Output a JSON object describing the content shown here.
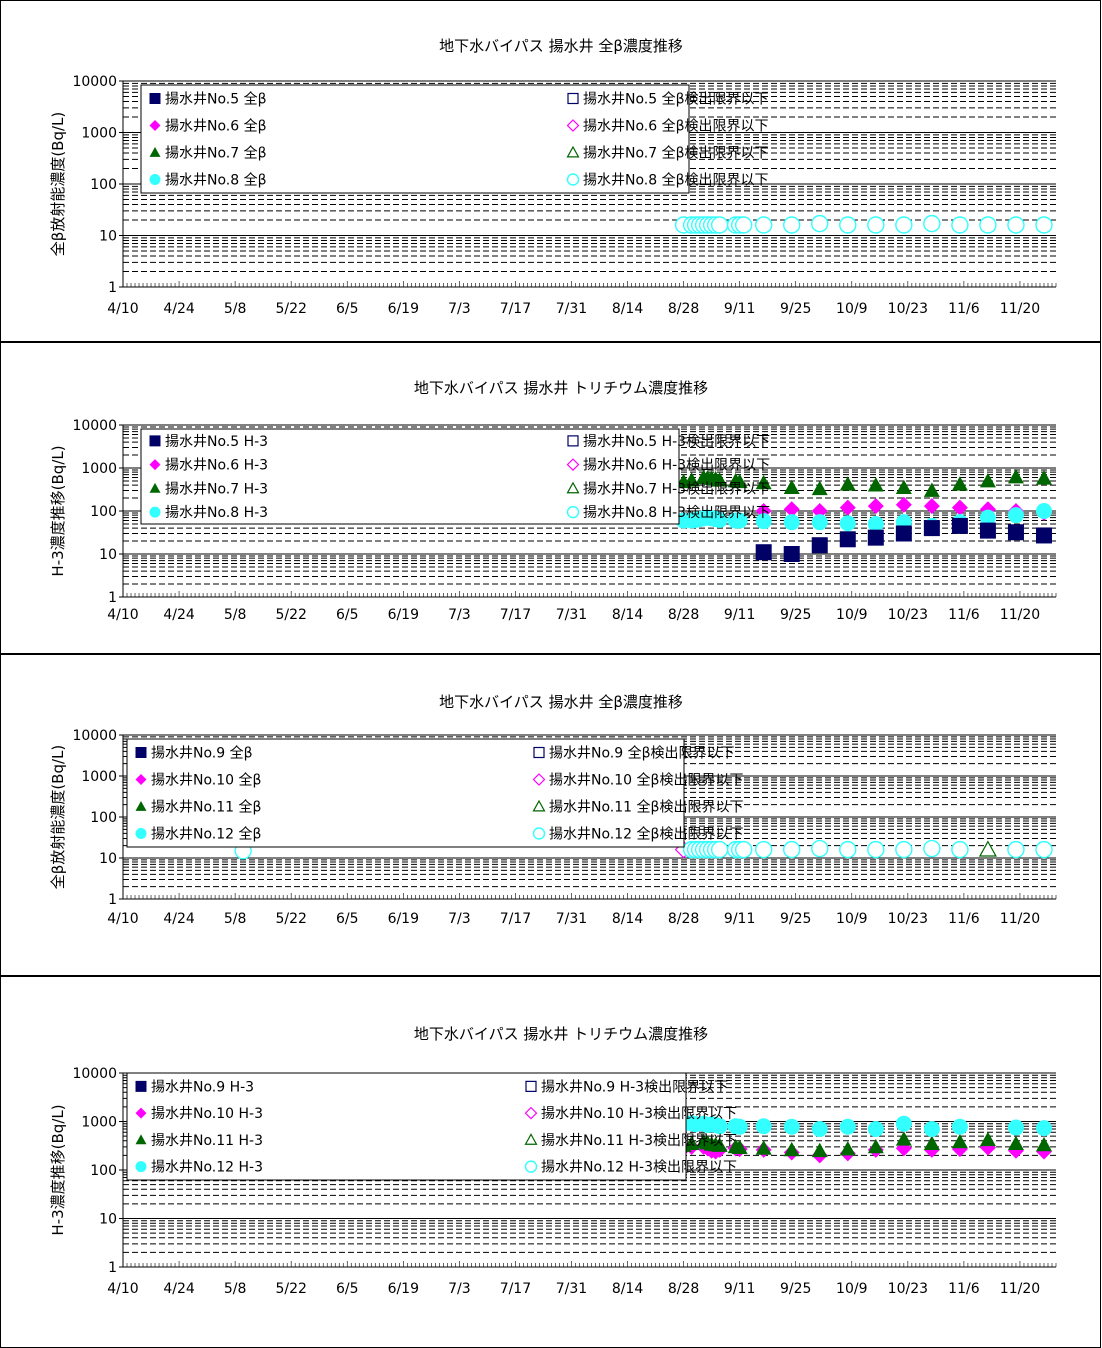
{
  "x_ticks": [
    "4/10",
    "4/24",
    "5/8",
    "5/22",
    "6/5",
    "6/19",
    "7/3",
    "7/17",
    "7/31",
    "8/14",
    "8/28",
    "9/11",
    "9/25",
    "10/9",
    "10/23",
    "11/6",
    "11/20"
  ],
  "colors": {
    "no5": "#000066",
    "no6": "#ff00ff",
    "no7": "#006600",
    "no8": "#33ffff",
    "no9": "#000066",
    "no10": "#ff00ff",
    "no11": "#006600",
    "no12": "#33ffff"
  },
  "chart_data": [
    {
      "type": "scatter",
      "title": "地下水バイパス 揚水井 全β濃度推移",
      "ylabel": "全β放射能濃度(Bq/L)",
      "yscale": "log",
      "ylim": [
        1,
        10000
      ],
      "y_ticks": [
        "1",
        "10",
        "100",
        "1000",
        "10000"
      ],
      "legend": [
        [
          "揚水井No.5 全β",
          "揚水井No.5 全β検出限界以下"
        ],
        [
          "揚水井No.6 全β",
          "揚水井No.6 全β検出限界以下"
        ],
        [
          "揚水井No.7 全β",
          "揚水井No.7 全β検出限界以下"
        ],
        [
          "揚水井No.8 全β",
          "揚水井No.8 全β検出限界以下"
        ]
      ],
      "series": [
        {
          "name": "揚水井No.8 全β検出限界以下",
          "marker": "circle-open",
          "color_key": "no8",
          "x": [
            "8/28",
            "8/30",
            "8/31",
            "9/1",
            "9/2",
            "9/3",
            "9/4",
            "9/5",
            "9/6",
            "9/10",
            "9/11",
            "9/12",
            "9/17",
            "9/24",
            "10/1",
            "10/8",
            "10/15",
            "10/22",
            "10/29",
            "11/5",
            "11/12",
            "11/19",
            "11/26"
          ],
          "y": [
            16,
            16,
            16,
            16,
            16,
            16,
            16,
            16,
            16,
            16,
            16,
            16,
            16,
            16,
            17,
            16,
            16,
            16,
            17,
            16,
            16,
            16,
            16
          ]
        }
      ]
    },
    {
      "type": "scatter",
      "title": "地下水バイパス 揚水井 トリチウム濃度推移",
      "ylabel": "H-3濃度推移(Bq/L)",
      "yscale": "log",
      "ylim": [
        1,
        10000
      ],
      "y_ticks": [
        "1",
        "10",
        "100",
        "1000",
        "10000"
      ],
      "legend": [
        [
          "揚水井No.5 H-3",
          "揚水井No.5 H-3検出限界以下"
        ],
        [
          "揚水井No.6 H-3",
          "揚水井No.6 H-3検出限界以下"
        ],
        [
          "揚水井No.7 H-3",
          "揚水井No.7 H-3検出限界以下"
        ],
        [
          "揚水井No.8 H-3",
          "揚水井No.8 H-3検出限界以下"
        ]
      ],
      "series": [
        {
          "name": "揚水井No.7 H-3",
          "marker": "triangle",
          "color_key": "no7",
          "x": [
            "8/28",
            "8/30",
            "9/2",
            "9/3",
            "9/4",
            "9/5",
            "9/6",
            "9/10",
            "9/11",
            "9/17",
            "9/24",
            "10/1",
            "10/8",
            "10/15",
            "10/22",
            "10/29",
            "11/5",
            "11/12",
            "11/19",
            "11/26"
          ],
          "y": [
            480,
            520,
            600,
            590,
            570,
            560,
            520,
            500,
            480,
            450,
            350,
            330,
            420,
            400,
            350,
            300,
            420,
            500,
            620,
            580
          ]
        },
        {
          "name": "揚水井No.6 H-3",
          "marker": "diamond",
          "color_key": "no6",
          "x": [
            "9/17",
            "9/24",
            "10/1",
            "10/8",
            "10/15",
            "10/22",
            "10/29",
            "11/5",
            "11/12",
            "11/19",
            "11/26"
          ],
          "y": [
            100,
            110,
            100,
            120,
            130,
            140,
            130,
            120,
            110,
            100,
            90
          ]
        },
        {
          "name": "揚水井No.8 H-3",
          "marker": "circle",
          "color_key": "no8",
          "x": [
            "8/28",
            "8/30",
            "8/31",
            "9/1",
            "9/2",
            "9/3",
            "9/4",
            "9/5",
            "9/6",
            "9/10",
            "9/11",
            "9/17",
            "9/24",
            "10/1",
            "10/8",
            "10/15",
            "10/22",
            "10/29",
            "11/5",
            "11/12",
            "11/19",
            "11/26"
          ],
          "y": [
            60,
            60,
            62,
            65,
            68,
            70,
            68,
            65,
            62,
            60,
            60,
            58,
            55,
            55,
            52,
            50,
            55,
            45,
            55,
            70,
            80,
            100
          ]
        },
        {
          "name": "揚水井No.5 H-3",
          "marker": "square",
          "color_key": "no5",
          "x": [
            "9/17",
            "9/24",
            "10/1",
            "10/8",
            "10/15",
            "10/22",
            "10/29",
            "11/5",
            "11/12",
            "11/19",
            "11/26"
          ],
          "y": [
            11,
            10,
            16,
            22,
            24,
            30,
            40,
            45,
            35,
            32,
            27
          ]
        }
      ]
    },
    {
      "type": "scatter",
      "title": "地下水バイパス 揚水井 全β濃度推移",
      "ylabel": "全β放射能濃度(Bq/L)",
      "yscale": "log",
      "ylim": [
        1,
        10000
      ],
      "y_ticks": [
        "1",
        "10",
        "100",
        "1000",
        "10000"
      ],
      "legend": [
        [
          "揚水井No.9 全β",
          "揚水井No.9 全β検出限界以下"
        ],
        [
          "揚水井No.10 全β",
          "揚水井No.10 全β検出限界以下"
        ],
        [
          "揚水井No.11 全β",
          "揚水井No.11 全β検出限界以下"
        ],
        [
          "揚水井No.12 全β",
          "揚水井No.12 全β検出限界以下"
        ]
      ],
      "series": [
        {
          "name": "揚水井No.10 全β検出限界以下",
          "marker": "diamond-open",
          "color_key": "no10",
          "x": [
            "8/28"
          ],
          "y": [
            16
          ]
        },
        {
          "name": "揚水井No.11 全β検出限界以下",
          "marker": "triangle-open",
          "color_key": "no11",
          "x": [
            "11/12"
          ],
          "y": [
            16
          ]
        },
        {
          "name": "揚水井No.12 全β検出限界以下",
          "marker": "circle-open",
          "color_key": "no12",
          "x": [
            "5/10",
            "8/30",
            "8/31",
            "9/1",
            "9/2",
            "9/3",
            "9/4",
            "9/5",
            "9/6",
            "9/10",
            "9/11",
            "9/12",
            "9/17",
            "9/24",
            "10/1",
            "10/8",
            "10/15",
            "10/22",
            "10/29",
            "11/5",
            "11/19",
            "11/26"
          ],
          "y": [
            15,
            16,
            16,
            16,
            16,
            16,
            16,
            16,
            16,
            16,
            16,
            16,
            16,
            16,
            17,
            16,
            16,
            16,
            17,
            16,
            16,
            16
          ]
        }
      ]
    },
    {
      "type": "scatter",
      "title": "地下水バイパス 揚水井 トリチウム濃度推移",
      "ylabel": "H-3濃度推移(Bq/L)",
      "yscale": "log",
      "ylim": [
        1,
        10000
      ],
      "y_ticks": [
        "1",
        "10",
        "100",
        "1000",
        "10000"
      ],
      "legend": [
        [
          "揚水井No.9 H-3",
          "揚水井No.9 H-3検出限界以下"
        ],
        [
          "揚水井No.10 H-3",
          "揚水井No.10 H-3検出限界以下"
        ],
        [
          "揚水井No.11 H-3",
          "揚水井No.11 H-3検出限界以下"
        ],
        [
          "揚水井No.12 H-3",
          "揚水井No.12 H-3検出限界以下"
        ]
      ],
      "series": [
        {
          "name": "揚水井No.10 H-3",
          "marker": "diamond",
          "color_key": "no10",
          "x": [
            "8/28",
            "8/30",
            "9/2",
            "9/3",
            "9/4",
            "9/5",
            "9/6",
            "9/10",
            "9/11",
            "9/17",
            "9/24",
            "10/1",
            "10/8",
            "10/15",
            "10/22",
            "10/29",
            "11/5",
            "11/12",
            "11/19",
            "11/26"
          ],
          "y": [
            280,
            300,
            300,
            280,
            250,
            240,
            260,
            280,
            270,
            260,
            230,
            200,
            220,
            260,
            280,
            260,
            270,
            290,
            250,
            240
          ]
        },
        {
          "name": "揚水井No.11 H-3",
          "marker": "triangle",
          "color_key": "no11",
          "x": [
            "8/28",
            "8/30",
            "9/2",
            "9/3",
            "9/4",
            "9/5",
            "9/6",
            "9/10",
            "9/11",
            "9/17",
            "9/24",
            "10/1",
            "10/8",
            "10/15",
            "10/22",
            "10/29",
            "11/5",
            "11/12",
            "11/19",
            "11/26"
          ],
          "y": [
            320,
            350,
            380,
            360,
            340,
            330,
            320,
            300,
            290,
            280,
            260,
            250,
            270,
            300,
            430,
            350,
            380,
            420,
            350,
            330
          ]
        },
        {
          "name": "揚水井No.12 H-3",
          "marker": "circle",
          "color_key": "no12",
          "x": [
            "8/28",
            "8/30",
            "8/31",
            "9/2",
            "9/3",
            "9/4",
            "9/5",
            "9/6",
            "9/10",
            "9/11",
            "9/17",
            "9/24",
            "10/1",
            "10/8",
            "10/15",
            "10/22",
            "10/29",
            "11/5",
            "11/19",
            "11/26"
          ],
          "y": [
            900,
            920,
            880,
            900,
            850,
            870,
            850,
            800,
            800,
            780,
            800,
            780,
            700,
            780,
            700,
            900,
            700,
            780,
            750,
            730
          ]
        }
      ]
    }
  ]
}
